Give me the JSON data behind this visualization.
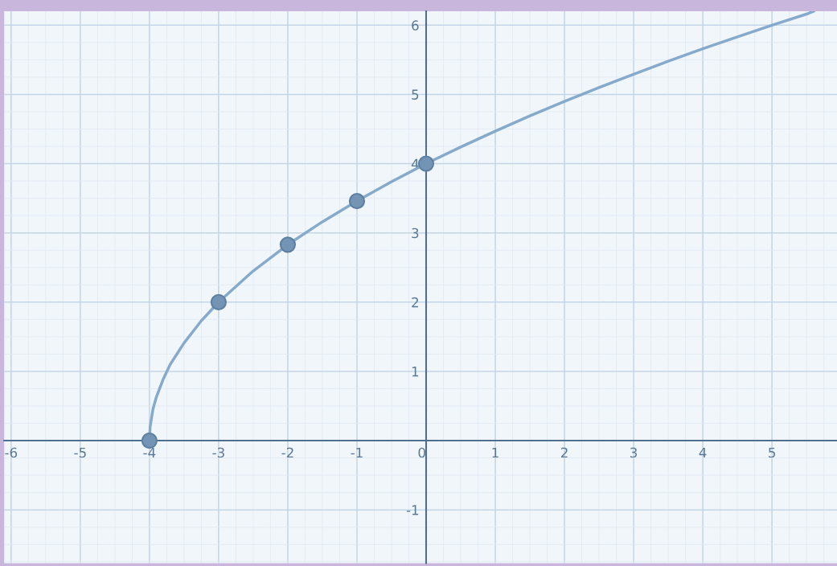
{
  "chart_data": {
    "type": "line",
    "xlim": [
      -6.1,
      5.94
    ],
    "ylim": [
      -1.77,
      6.2
    ],
    "xticks": [
      -6,
      -5,
      -4,
      -3,
      -2,
      -1,
      0,
      1,
      2,
      3,
      4,
      5
    ],
    "yticks": [
      -1,
      1,
      2,
      3,
      4,
      5,
      6
    ],
    "grid": true,
    "series": [
      {
        "color": "#86aacb",
        "marker": "none",
        "x": [
          -4,
          -3.99,
          -3.95,
          -3.9,
          -3.8,
          -3.7,
          -3.5,
          -3.25,
          -3,
          -2.5,
          -2,
          -1.5,
          -1,
          -0.5,
          0,
          0.5,
          1,
          1.5,
          2,
          2.5,
          3,
          3.5,
          4,
          4.5,
          5,
          5.5,
          5.6
        ],
        "values": [
          0,
          0.2,
          0.45,
          0.63,
          0.89,
          1.1,
          1.41,
          1.73,
          2,
          2.45,
          2.83,
          3.16,
          3.46,
          3.74,
          4,
          4.24,
          4.47,
          4.69,
          4.9,
          5.1,
          5.29,
          5.48,
          5.66,
          5.83,
          6,
          6.16,
          6.2
        ]
      },
      {
        "type": "scatter",
        "color": "#7394b5",
        "marker": "circle",
        "x": [
          -4,
          -3,
          -2,
          -1,
          0
        ],
        "values": [
          0,
          2,
          2.83,
          3.46,
          4
        ]
      }
    ]
  }
}
